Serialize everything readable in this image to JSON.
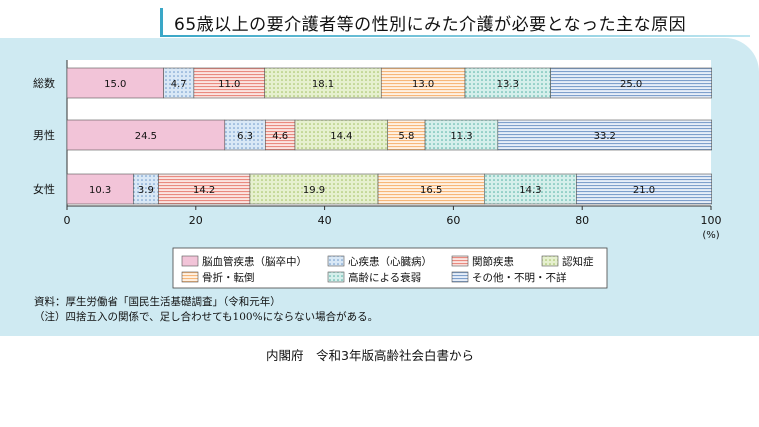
{
  "title": "65歳以上の要介護者等の性別にみた介護が必要となった主な原因",
  "chart_data": {
    "type": "bar",
    "orientation": "horizontal",
    "stacked": true,
    "categories": [
      "総数",
      "男性",
      "女性"
    ],
    "series": [
      {
        "name": "脳血管疾患（脳卒中）",
        "values": [
          15.0,
          24.5,
          10.3
        ],
        "color": "#f2c4d8",
        "pattern": "none"
      },
      {
        "name": "心疾患（心臓病）",
        "values": [
          4.7,
          6.3,
          3.9
        ],
        "color": "#d9e8f6",
        "pattern": "dots-blue"
      },
      {
        "name": "関節疾患",
        "values": [
          11.0,
          4.6,
          14.2
        ],
        "color": "#f6c9c4",
        "pattern": "hlines-red"
      },
      {
        "name": "認知症",
        "values": [
          18.1,
          14.4,
          19.9
        ],
        "color": "#e2eec9",
        "pattern": "dots-green"
      },
      {
        "name": "骨折・転倒",
        "values": [
          13.0,
          5.8,
          16.5
        ],
        "color": "#fde0c2",
        "pattern": "hlines-orange"
      },
      {
        "name": "高齢による衰弱",
        "values": [
          13.3,
          11.3,
          14.3
        ],
        "color": "#d2eeea",
        "pattern": "dots-teal"
      },
      {
        "name": "その他・不明・不詳",
        "values": [
          25.0,
          33.2,
          21.0
        ],
        "color": "#dde8f5",
        "pattern": "hlines-blue"
      }
    ],
    "labels": [
      [
        "15.0",
        "24.5",
        "10.3"
      ],
      [
        "4.7",
        "6.3",
        "3.9"
      ],
      [
        "11.0",
        "4.6",
        "14.2"
      ],
      [
        "18.1",
        "14.4",
        "19.9"
      ],
      [
        "13.0",
        "5.8",
        "16.5"
      ],
      [
        "13.3",
        "11.3",
        "14.3"
      ],
      [
        "25.0",
        "33.2",
        "21.0"
      ]
    ],
    "xticks": [
      "0",
      "20",
      "40",
      "60",
      "80",
      "100"
    ],
    "xlim": [
      0,
      100
    ],
    "xunit": "(%)",
    "grid": false
  },
  "source": "資料：厚生労働省「国民生活基礎調査」（令和元年）",
  "note": "（注）四捨五入の関係で、足し合わせても100%にならない場合がある。",
  "credit": "内閣府　令和3年版高齢社会白書から"
}
